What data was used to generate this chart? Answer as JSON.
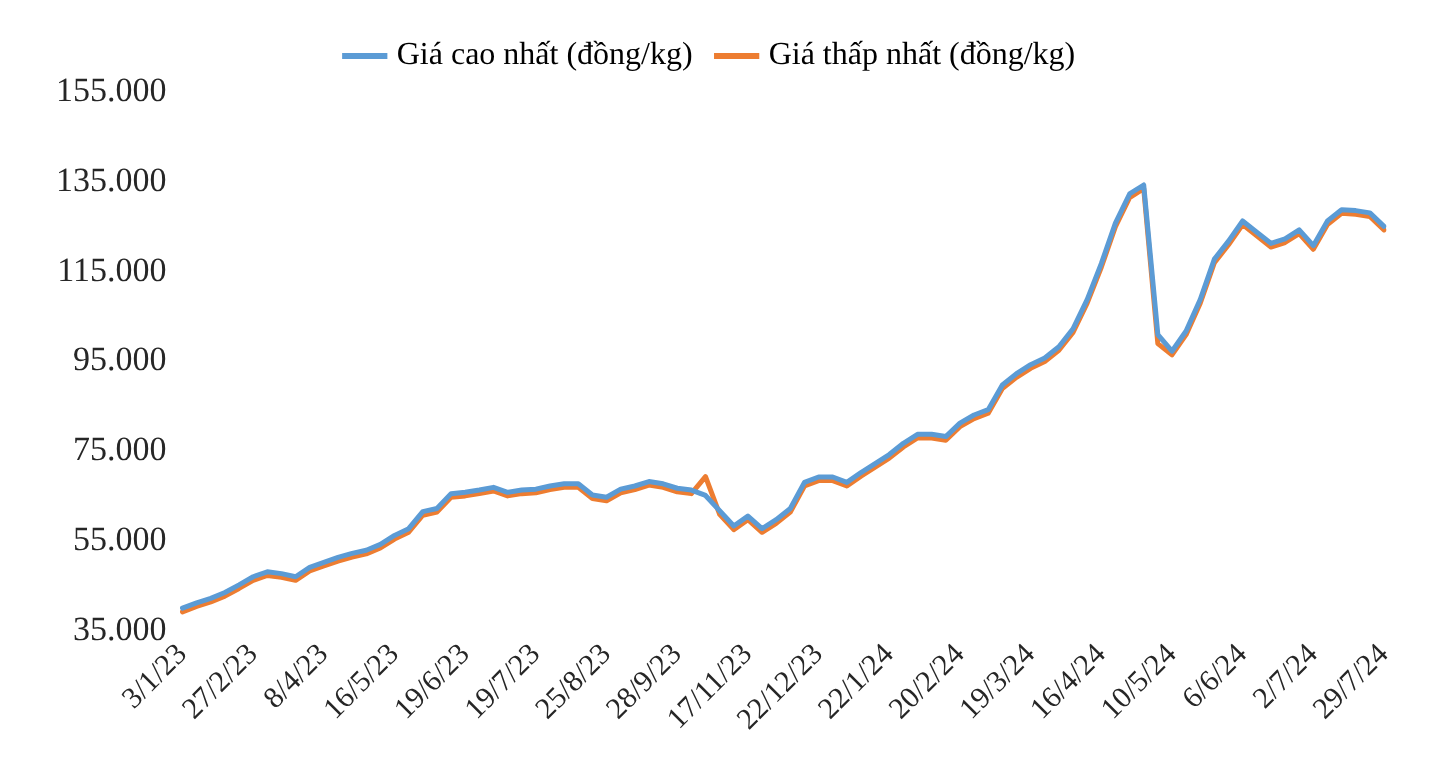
{
  "chart_data": {
    "type": "line",
    "categories": [
      "3/1/23",
      null,
      null,
      null,
      null,
      "27/2/23",
      null,
      null,
      null,
      null,
      "8/4/23",
      null,
      null,
      null,
      null,
      "16/5/23",
      null,
      null,
      null,
      null,
      "19/6/23",
      null,
      null,
      null,
      null,
      "19/7/23",
      null,
      null,
      null,
      null,
      "25/8/23",
      null,
      null,
      null,
      null,
      "28/9/23",
      null,
      null,
      null,
      null,
      "17/11/23",
      null,
      null,
      null,
      null,
      "22/12/23",
      null,
      null,
      null,
      null,
      "22/1/24",
      null,
      null,
      null,
      null,
      "20/2/24",
      null,
      null,
      null,
      null,
      "19/3/24",
      null,
      null,
      null,
      null,
      "16/4/24",
      null,
      null,
      null,
      null,
      "10/5/24",
      null,
      null,
      null,
      null,
      "6/6/24",
      null,
      null,
      null,
      null,
      "2/7/24",
      null,
      null,
      null,
      null,
      "29/7/24"
    ],
    "series": [
      {
        "name": "Giá cao nhất (đồng/kg)",
        "color": "#5b9bd5",
        "values": [
          40100,
          41300,
          42300,
          43600,
          45300,
          47100,
          48200,
          47800,
          47100,
          49200,
          50300,
          51400,
          52300,
          53000,
          54300,
          56300,
          57800,
          61600,
          62300,
          65600,
          65900,
          66400,
          67000,
          65900,
          66400,
          66600,
          67300,
          67800,
          67800,
          65300,
          64800,
          66600,
          67300,
          68300,
          67800,
          66800,
          66400,
          65200,
          61800,
          58400,
          60600,
          57800,
          59800,
          62300,
          68100,
          69300,
          69300,
          68100,
          70300,
          72300,
          74300,
          76800,
          78800,
          78800,
          78300,
          81300,
          83100,
          84300,
          89800,
          92300,
          94300,
          95800,
          98300,
          102300,
          108800,
          116800,
          125800,
          132300,
          134300,
          101000,
          97300,
          101800,
          108800,
          117800,
          121800,
          126300,
          123800,
          121300,
          122300,
          124300,
          120800,
          126300,
          128800,
          128600,
          128100,
          125100
        ]
      },
      {
        "name": "Giá thấp nhất (đồng/kg)",
        "color": "#ed7d31",
        "values": [
          39300,
          40500,
          41500,
          42800,
          44500,
          46300,
          47400,
          47000,
          46300,
          48400,
          49500,
          50600,
          51500,
          52200,
          53500,
          55500,
          57000,
          60800,
          61500,
          64800,
          65100,
          65600,
          66200,
          65100,
          65600,
          65800,
          66500,
          67000,
          67000,
          64500,
          64000,
          65800,
          66500,
          67500,
          67000,
          66000,
          65600,
          69400,
          61000,
          57600,
          59800,
          57000,
          59000,
          61500,
          67300,
          68500,
          68500,
          67300,
          69500,
          71500,
          73500,
          76000,
          78000,
          78000,
          77500,
          80500,
          82300,
          83500,
          89000,
          91500,
          93500,
          95000,
          97500,
          101500,
          108000,
          116000,
          125000,
          131500,
          133500,
          99000,
          96500,
          101000,
          108000,
          117000,
          121000,
          125500,
          123000,
          120500,
          121500,
          123500,
          120000,
          125500,
          128000,
          127800,
          127300,
          124300
        ]
      }
    ],
    "ylim": [
      35000,
      155000
    ],
    "yticks": [
      {
        "value": 35000,
        "label": "35.000"
      },
      {
        "value": 55000,
        "label": "55.000"
      },
      {
        "value": 75000,
        "label": "75.000"
      },
      {
        "value": 95000,
        "label": "95.000"
      },
      {
        "value": 115000,
        "label": "115.000"
      },
      {
        "value": 135000,
        "label": "135.000"
      },
      {
        "value": 155000,
        "label": "155.000"
      }
    ],
    "grid": false,
    "legend": "top",
    "marker": "none",
    "line_style": "solid"
  }
}
